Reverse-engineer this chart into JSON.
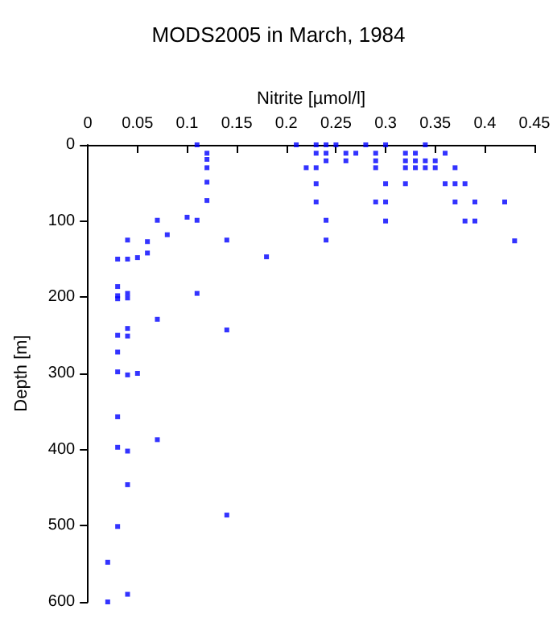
{
  "chart_data": {
    "type": "scatter",
    "title": "MODS2005 in March, 1984",
    "xlabel": "Nitrite [µmol/l]",
    "ylabel": "Depth [m]",
    "xlim": [
      0,
      0.45
    ],
    "xticks": [
      0,
      0.05,
      0.1,
      0.15,
      0.2,
      0.25,
      0.3,
      0.35,
      0.4,
      0.45
    ],
    "ylim": [
      600,
      0
    ],
    "yticks": [
      0,
      100,
      200,
      300,
      400,
      500,
      600
    ],
    "grid": false,
    "marker": "square",
    "series": [
      {
        "color": "#0000ff",
        "x": [
          0.11,
          0.12,
          0.12,
          0.12,
          0.12,
          0.12,
          0.21,
          0.22,
          0.07,
          0.1,
          0.11,
          0.04,
          0.06,
          0.08,
          0.14,
          0.03,
          0.04,
          0.05,
          0.06,
          0.18,
          0.03,
          0.03,
          0.03,
          0.04,
          0.04,
          0.11,
          0.07,
          0.04,
          0.04,
          0.14,
          0.03,
          0.03,
          0.03,
          0.04,
          0.05,
          0.03,
          0.07,
          0.03,
          0.04,
          0.04,
          0.14,
          0.03,
          0.02,
          0.04,
          0.02,
          0.23,
          0.24,
          0.25,
          0.28,
          0.3,
          0.34,
          0.23,
          0.24,
          0.26,
          0.27,
          0.29,
          0.32,
          0.33,
          0.36,
          0.24,
          0.26,
          0.29,
          0.32,
          0.33,
          0.34,
          0.35,
          0.23,
          0.29,
          0.32,
          0.33,
          0.34,
          0.35,
          0.37,
          0.23,
          0.3,
          0.32,
          0.36,
          0.37,
          0.38,
          0.23,
          0.29,
          0.3,
          0.37,
          0.39,
          0.42,
          0.24,
          0.3,
          0.38,
          0.39,
          0.24,
          0.43
        ],
        "values": [
          0,
          11,
          19,
          30,
          49,
          73,
          0,
          30,
          99,
          95,
          99,
          125,
          127,
          118,
          125,
          150,
          150,
          148,
          142,
          147,
          186,
          198,
          202,
          195,
          201,
          195,
          229,
          241,
          251,
          243,
          250,
          272,
          298,
          302,
          300,
          357,
          387,
          397,
          402,
          446,
          486,
          501,
          548,
          590,
          600,
          0,
          0,
          0,
          0,
          0,
          0,
          11,
          11,
          11,
          11,
          11,
          11,
          11,
          11,
          21,
          21,
          21,
          21,
          21,
          21,
          21,
          30,
          30,
          30,
          30,
          30,
          30,
          30,
          51,
          51,
          51,
          51,
          51,
          51,
          75,
          75,
          75,
          75,
          75,
          75,
          99,
          100,
          100,
          100,
          125,
          126
        ]
      }
    ]
  }
}
